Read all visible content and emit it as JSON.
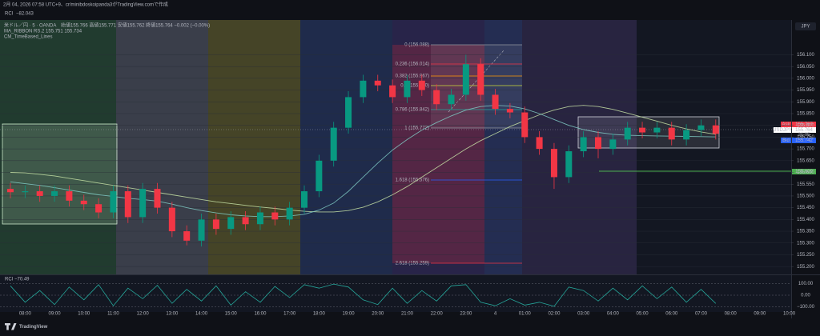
{
  "header": {
    "caption": "2月 04, 2026 07:58 UTC+9、cr/minibdoskoipanda3がTradingView.comで作成",
    "indicator": "RCI",
    "indicator_value": "−82.043",
    "pair": "米ドル／円 · 5 · OANDA",
    "ohlc": "始値155.766 高値155.771 安値155.762 終値155.764 −0.002 (−0.00%)",
    "ribbon": "MA_RIBBON RS.2 155.751 155.734",
    "lines": "CM_TimeBased_Lines"
  },
  "fib_labels": [
    "0 (156.088)",
    "0.236 (156.014)",
    "0.382 (155.967)",
    "0.5 (155.930)",
    "0.786 (155.842)",
    "1 (155.772)",
    "1.618 (155.576)",
    "2.618 (155.259)"
  ],
  "price_labels": {
    "ask": "Ask",
    "ask_price": "155.767",
    "symbol": "USDJPY",
    "last_price": "155.764",
    "countdown": "21:05",
    "bid": "Bid",
    "bid_price": "155.742",
    "level": "155.609"
  },
  "logo": "TradingView",
  "chart_data": [
    {
      "type": "candlestick",
      "axis_label": "JPY",
      "up_color": "#089981",
      "down_color": "#f23645",
      "categories": [
        null,
        "08:00",
        null,
        "09:00",
        null,
        "10:00",
        null,
        "11:00",
        null,
        "12:00",
        null,
        "13:00",
        null,
        "14:00",
        null,
        "15:00",
        null,
        "16:00",
        null,
        "17:00",
        null,
        "18:00",
        null,
        "19:00",
        null,
        "20:00",
        null,
        "21:00",
        null,
        "22:00",
        null,
        "23:00",
        null,
        "4",
        null,
        "01:00",
        null,
        "02:00",
        null,
        "03:00",
        null,
        "04:00",
        null,
        "05:00",
        null,
        "06:00",
        null,
        "07:00",
        null,
        "08:00",
        null,
        "09:00",
        null,
        "10:00"
      ],
      "open": [
        155.53,
        155.516,
        155.52,
        155.5,
        155.52,
        155.48,
        155.465,
        155.43,
        155.52,
        155.41,
        155.53,
        155.45,
        155.35,
        155.31,
        155.4,
        155.36,
        155.41,
        155.38,
        155.43,
        155.4,
        155.45,
        155.52,
        155.65,
        155.79,
        155.92,
        155.99,
        155.97,
        155.92,
        155.99,
        155.95,
        155.89,
        155.93,
        156.06,
        155.93,
        155.87,
        155.855,
        155.75,
        155.7,
        155.58,
        155.69,
        155.75,
        155.7,
        155.74,
        155.79,
        155.77,
        155.79,
        155.74,
        155.78,
        155.8,
        null,
        null,
        null,
        null,
        null
      ],
      "high": [
        155.555,
        155.545,
        155.545,
        155.545,
        155.545,
        155.505,
        155.49,
        155.545,
        155.545,
        155.555,
        155.555,
        155.475,
        155.375,
        155.425,
        155.425,
        155.435,
        155.435,
        155.455,
        155.455,
        155.475,
        155.545,
        155.675,
        155.815,
        155.945,
        156.015,
        156.015,
        155.995,
        156.015,
        156.015,
        155.975,
        155.955,
        156.1,
        156.085,
        155.955,
        155.895,
        155.88,
        155.775,
        155.725,
        155.715,
        155.775,
        155.775,
        155.765,
        155.815,
        155.815,
        155.815,
        155.815,
        155.805,
        155.825,
        155.825,
        null,
        null,
        null,
        null,
        null
      ],
      "low": [
        155.49,
        155.491,
        155.475,
        155.475,
        155.455,
        155.44,
        155.405,
        155.405,
        155.385,
        155.385,
        155.425,
        155.325,
        155.29,
        155.285,
        155.335,
        155.335,
        155.355,
        155.355,
        155.375,
        155.375,
        155.425,
        155.495,
        155.625,
        155.765,
        155.895,
        155.945,
        155.895,
        155.895,
        155.925,
        155.865,
        155.865,
        155.905,
        155.905,
        155.845,
        155.83,
        155.725,
        155.675,
        155.53,
        155.555,
        155.665,
        155.66,
        155.675,
        155.715,
        155.745,
        155.745,
        155.715,
        155.715,
        155.755,
        155.74,
        null,
        null,
        null,
        null,
        null
      ],
      "close": [
        155.516,
        155.52,
        155.5,
        155.52,
        155.48,
        155.465,
        155.43,
        155.52,
        155.41,
        155.53,
        155.45,
        155.35,
        155.31,
        155.4,
        155.36,
        155.41,
        155.38,
        155.43,
        155.4,
        155.45,
        155.52,
        155.65,
        155.79,
        155.92,
        155.99,
        155.97,
        155.92,
        155.99,
        155.95,
        155.89,
        155.93,
        156.06,
        155.93,
        155.87,
        155.855,
        155.75,
        155.7,
        155.58,
        155.69,
        155.75,
        155.7,
        155.74,
        155.79,
        155.77,
        155.79,
        155.74,
        155.78,
        155.8,
        155.764,
        null,
        null,
        null,
        null,
        null
      ],
      "ma_lines": [
        {
          "color": "#c5e1a5",
          "values": [
            155.6,
            155.598,
            155.592,
            155.585,
            155.575,
            155.565,
            155.555,
            155.545,
            155.535,
            155.525,
            155.515,
            155.505,
            155.495,
            155.485,
            155.475,
            155.468,
            155.46,
            155.453,
            155.447,
            155.44,
            155.435,
            155.432,
            155.432,
            155.438,
            155.452,
            155.475,
            155.505,
            155.54,
            155.58,
            155.62,
            155.66,
            155.7,
            155.735,
            155.765,
            155.795,
            155.82,
            155.845,
            155.865,
            155.88,
            155.885,
            155.88,
            155.868,
            155.852,
            155.835,
            155.818,
            155.8,
            155.785,
            155.772,
            155.762,
            null,
            null,
            null,
            null,
            null
          ]
        },
        {
          "color": "#80cbc4",
          "values": [
            155.56,
            155.552,
            155.545,
            155.535,
            155.525,
            155.515,
            155.505,
            155.498,
            155.49,
            155.485,
            155.478,
            155.465,
            155.45,
            155.438,
            155.428,
            155.42,
            155.415,
            155.412,
            155.412,
            155.415,
            155.422,
            155.44,
            155.47,
            155.52,
            155.58,
            155.64,
            155.695,
            155.74,
            155.78,
            155.812,
            155.84,
            155.865,
            155.88,
            155.885,
            155.882,
            155.87,
            155.85,
            155.825,
            155.8,
            155.782,
            155.77,
            155.762,
            155.758,
            155.756,
            155.755,
            155.754,
            155.753,
            155.752,
            155.751,
            null,
            null,
            null,
            null,
            null
          ]
        }
      ],
      "ylim": [
        155.17,
        156.19
      ],
      "yticks": [
        {
          "value": 155.2,
          "label": "155.200"
        },
        {
          "value": 155.25,
          "label": "155.250"
        },
        {
          "value": 155.3,
          "label": "155.300"
        },
        {
          "value": 155.35,
          "label": "155.350"
        },
        {
          "value": 155.4,
          "label": "155.400"
        },
        {
          "value": 155.45,
          "label": "155.450"
        },
        {
          "value": 155.5,
          "label": "155.500"
        },
        {
          "value": 155.55,
          "label": "155.550"
        },
        {
          "value": 155.6,
          "label": "155.600"
        },
        {
          "value": 155.65,
          "label": "155.650"
        },
        {
          "value": 155.7,
          "label": "155.700"
        },
        {
          "value": 155.75,
          "label": "155.750"
        },
        {
          "value": 155.8,
          "label": "155.800"
        },
        {
          "value": 155.85,
          "label": "155.850"
        },
        {
          "value": 155.9,
          "label": "155.900"
        },
        {
          "value": 155.95,
          "label": "155.950"
        },
        {
          "value": 156.0,
          "label": "156.000"
        },
        {
          "value": 156.05,
          "label": "156.050"
        },
        {
          "value": 156.1,
          "label": "156.100"
        }
      ],
      "grid": true
    },
    {
      "type": "line",
      "title": "RCI",
      "value_label": "−70.49",
      "color": "#26a69a",
      "values": [
        80,
        -60,
        40,
        -80,
        70,
        -40,
        90,
        -90,
        60,
        -30,
        85,
        -70,
        50,
        -50,
        80,
        -85,
        30,
        -60,
        75,
        -20,
        90,
        60,
        95,
        70,
        -40,
        -80,
        60,
        -70,
        40,
        -50,
        80,
        90,
        -60,
        -90,
        -30,
        -85,
        -60,
        -95,
        70,
        40,
        -50,
        60,
        -40,
        80,
        -30,
        70,
        -60,
        50,
        -70.49,
        null,
        null,
        null,
        null,
        null
      ],
      "ylim": [
        -130,
        130
      ],
      "yticks": [
        {
          "value": 100,
          "label": "100.00"
        },
        {
          "value": 0,
          "label": "0.00"
        },
        {
          "value": -100,
          "label": "−100.00"
        }
      ]
    }
  ]
}
